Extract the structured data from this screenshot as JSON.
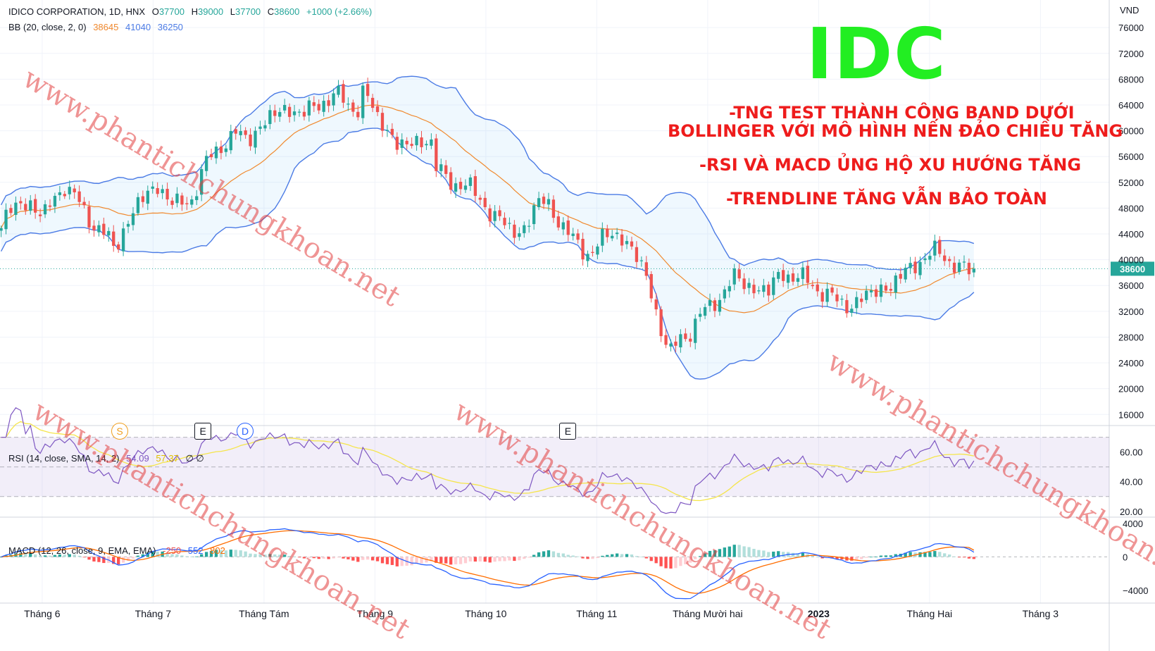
{
  "header": {
    "symbol": "IDICO CORPORATION, 1D, HNX",
    "o_label": "O",
    "o_value": "37700",
    "h_label": "H",
    "h_value": "39000",
    "l_label": "L",
    "l_value": "37700",
    "c_label": "C",
    "c_value": "38600",
    "change": "+1000 (+2.66%)",
    "bb_label": "BB (20, close, 2, 0)",
    "bb_basis": "38645",
    "bb_upper": "41040",
    "bb_lower": "36250"
  },
  "big_title": "IDC",
  "notes": [
    "-TNG TEST THÀNH CÔNG BAND DƯỚI",
    "BOLLINGER VỚI MÔ HÌNH NẾN ĐẢO CHIỀU TĂNG",
    "-RSI VÀ MACD ỦNG HỘ XU HƯỚNG TĂNG",
    "-TRENDLINE TĂNG VẪN BẢO TOÀN"
  ],
  "watermark": "www.phantichchungkhoan.net",
  "rsi_legend": {
    "label": "RSI (14, close, SMA, 14, 2)",
    "value": "54.09",
    "sma": "57.37",
    "extra": "∅ ∅"
  },
  "macd_legend": {
    "label": "MACD (12, 26, close, 9, EMA, EMA)",
    "hist": "-250",
    "macd": "552",
    "signal": "802"
  },
  "events": [
    {
      "symbol": "S",
      "month_pos": 5.8
    },
    {
      "symbol": "E",
      "month_pos": 6.55
    },
    {
      "symbol": "D",
      "month_pos": 6.93
    },
    {
      "symbol": "E",
      "month_pos": 9.84
    }
  ],
  "colors": {
    "up": "#26a69a",
    "down": "#ef5350",
    "bb_band": "#4b7be5",
    "bb_basis": "#f0892e",
    "rsi": "#7e57c2",
    "rsi_ma": "#f5e54b",
    "macd": "#2962ff",
    "signal": "#ff6d00",
    "price_tag": "#26a69a",
    "title": "#22ee22",
    "notes": "#ee1c1c"
  },
  "chart_data": [
    {
      "type": "candlestick",
      "title": "IDICO CORPORATION, 1D, HNX",
      "currency_label": "VND",
      "y_ticks": [
        16000,
        20000,
        24000,
        28000,
        32000,
        36000,
        40000,
        44000,
        48000,
        52000,
        56000,
        60000,
        64000,
        68000,
        72000,
        76000
      ],
      "ylim": [
        14500,
        77000
      ],
      "last_price": 38600,
      "x_labels": [
        {
          "label": "Tháng 6",
          "pos": 5.1
        },
        {
          "label": "Tháng 7",
          "pos": 6.1
        },
        {
          "label": "Tháng Tám",
          "pos": 7.1
        },
        {
          "label": "Tháng 9",
          "pos": 8.1
        },
        {
          "label": "Tháng 10",
          "pos": 9.1
        },
        {
          "label": "Tháng 11",
          "pos": 10.1
        },
        {
          "label": "Tháng Mười hai",
          "pos": 11.1
        },
        {
          "label": "2023",
          "pos": 12.1
        },
        {
          "label": "Tháng Hai",
          "pos": 13.1
        },
        {
          "label": "Tháng 3",
          "pos": 14.1
        }
      ],
      "xlim": [
        4.72,
        14.72
      ],
      "close_series_month_pos": [
        [
          4.73,
          44500
        ],
        [
          4.8,
          47500
        ],
        [
          4.9,
          49000
        ],
        [
          5.0,
          48500
        ],
        [
          5.1,
          46500
        ],
        [
          5.2,
          49500
        ],
        [
          5.3,
          51500
        ],
        [
          5.4,
          49500
        ],
        [
          5.5,
          47000
        ],
        [
          5.6,
          45000
        ],
        [
          5.7,
          43000
        ],
        [
          5.75,
          41500
        ],
        [
          5.85,
          45500
        ],
        [
          5.95,
          48000
        ],
        [
          6.05,
          50500
        ],
        [
          6.15,
          51500
        ],
        [
          6.25,
          49000
        ],
        [
          6.35,
          48500
        ],
        [
          6.45,
          49500
        ],
        [
          6.55,
          54000
        ],
        [
          6.65,
          56500
        ],
        [
          6.75,
          58500
        ],
        [
          6.85,
          59500
        ],
        [
          6.95,
          58500
        ],
        [
          7.05,
          60500
        ],
        [
          7.15,
          62000
        ],
        [
          7.25,
          63000
        ],
        [
          7.35,
          63500
        ],
        [
          7.45,
          62500
        ],
        [
          7.55,
          63500
        ],
        [
          7.65,
          65000
        ],
        [
          7.75,
          65500
        ],
        [
          7.85,
          64000
        ],
        [
          7.95,
          63500
        ],
        [
          8.0,
          66500
        ],
        [
          8.05,
          64500
        ],
        [
          8.1,
          62500
        ],
        [
          8.2,
          60500
        ],
        [
          8.3,
          58000
        ],
        [
          8.4,
          57500
        ],
        [
          8.5,
          58500
        ],
        [
          8.6,
          59000
        ],
        [
          8.65,
          54000
        ],
        [
          8.75,
          52500
        ],
        [
          8.85,
          52000
        ],
        [
          8.95,
          51000
        ],
        [
          9.05,
          49500
        ],
        [
          9.15,
          47000
        ],
        [
          9.25,
          46000
        ],
        [
          9.35,
          44000
        ],
        [
          9.45,
          45000
        ],
        [
          9.55,
          48500
        ],
        [
          9.65,
          49000
        ],
        [
          9.75,
          46500
        ],
        [
          9.85,
          43500
        ],
        [
          9.95,
          42000
        ],
        [
          10.05,
          41000
        ],
        [
          10.15,
          43000
        ],
        [
          10.25,
          44500
        ],
        [
          10.35,
          43000
        ],
        [
          10.45,
          40500
        ],
        [
          10.55,
          37500
        ],
        [
          10.65,
          31000
        ],
        [
          10.75,
          25000
        ],
        [
          10.85,
          28000
        ],
        [
          10.95,
          29000
        ],
        [
          11.05,
          31500
        ],
        [
          11.15,
          33500
        ],
        [
          11.25,
          35000
        ],
        [
          11.35,
          37500
        ],
        [
          11.45,
          36000
        ],
        [
          11.55,
          35500
        ],
        [
          11.65,
          35000
        ],
        [
          11.75,
          38000
        ],
        [
          11.85,
          37500
        ],
        [
          11.95,
          37000
        ],
        [
          12.05,
          36000
        ],
        [
          12.15,
          35000
        ],
        [
          12.25,
          33500
        ],
        [
          12.35,
          33000
        ],
        [
          12.45,
          33500
        ],
        [
          12.55,
          34500
        ],
        [
          12.65,
          35500
        ],
        [
          12.75,
          36000
        ],
        [
          12.85,
          37500
        ],
        [
          12.95,
          39000
        ],
        [
          13.05,
          40500
        ],
        [
          13.15,
          41000
        ],
        [
          13.25,
          40500
        ],
        [
          13.35,
          39000
        ],
        [
          13.45,
          38000
        ],
        [
          13.5,
          38600
        ]
      ]
    },
    {
      "type": "line",
      "title": "RSI (14, close, SMA, 14, 2)",
      "y_ticks": [
        20.0,
        40.0,
        60.0
      ],
      "ylim": [
        18,
        76
      ],
      "band": [
        30,
        70
      ],
      "midline": 50,
      "last_values": {
        "rsi": 54.09,
        "sma": 57.37
      }
    },
    {
      "type": "bar",
      "title": "MACD (12, 26, close, 9, EMA, EMA)",
      "y_ticks": [
        -4000,
        0,
        4000
      ],
      "ylim": [
        -5000,
        4400
      ],
      "last_values": {
        "histogram": -250,
        "macd": 552,
        "signal": 802
      }
    }
  ]
}
